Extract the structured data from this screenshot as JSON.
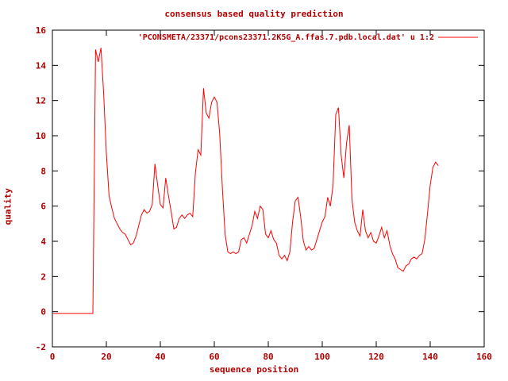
{
  "window": {
    "background": "#ffffff"
  },
  "chart_data": {
    "type": "line",
    "title": "consensus based quality prediction",
    "xlabel": "sequence position",
    "ylabel": "quality",
    "xlim": [
      0,
      160
    ],
    "ylim": [
      -2,
      16
    ],
    "xticks": [
      0,
      20,
      40,
      60,
      80,
      100,
      120,
      140,
      160
    ],
    "yticks": [
      -2,
      0,
      2,
      4,
      6,
      8,
      10,
      12,
      14,
      16
    ],
    "grid": false,
    "legend": "'PCONSMETA/23371/pcons23371.2K5G_A.ffas.7.pdb.local.dat' u 1:2",
    "legend_position": "top-right-inside",
    "line_color": "#ff0000",
    "text_color": "#b00000",
    "border_color": "#000000",
    "series": [
      {
        "name": "'PCONSMETA/23371/pcons23371.2K5G_A.ffas.7.pdb.local.dat' u 1:2",
        "x": [
          0,
          1,
          2,
          3,
          4,
          5,
          6,
          7,
          8,
          9,
          10,
          11,
          12,
          13,
          14,
          15,
          16,
          17,
          18,
          19,
          20,
          21,
          22,
          23,
          24,
          25,
          26,
          27,
          28,
          29,
          30,
          31,
          32,
          33,
          34,
          35,
          36,
          37,
          38,
          39,
          40,
          41,
          42,
          43,
          44,
          45,
          46,
          47,
          48,
          49,
          50,
          51,
          52,
          53,
          54,
          55,
          56,
          57,
          58,
          59,
          60,
          61,
          62,
          63,
          64,
          65,
          66,
          67,
          68,
          69,
          70,
          71,
          72,
          73,
          74,
          75,
          76,
          77,
          78,
          79,
          80,
          81,
          82,
          83,
          84,
          85,
          86,
          87,
          88,
          89,
          90,
          91,
          92,
          93,
          94,
          95,
          96,
          97,
          98,
          99,
          100,
          101,
          102,
          103,
          104,
          105,
          106,
          107,
          108,
          109,
          110,
          111,
          112,
          113,
          114,
          115,
          116,
          117,
          118,
          119,
          120,
          121,
          122,
          123,
          124,
          125,
          126,
          127,
          128,
          129,
          130,
          131,
          132,
          133,
          134,
          135,
          136,
          137,
          138,
          139,
          140,
          141,
          142,
          143
        ],
        "y": [
          -0.1,
          -0.1,
          -0.1,
          -0.1,
          -0.1,
          -0.1,
          -0.1,
          -0.1,
          -0.1,
          -0.1,
          -0.1,
          -0.1,
          -0.1,
          -0.1,
          -0.1,
          -0.1,
          14.9,
          14.2,
          15.0,
          12.4,
          9.0,
          6.6,
          5.9,
          5.3,
          5.0,
          4.7,
          4.5,
          4.4,
          4.1,
          3.8,
          3.9,
          4.3,
          4.9,
          5.5,
          5.8,
          5.6,
          5.7,
          6.1,
          8.4,
          7.2,
          6.1,
          5.9,
          7.6,
          6.6,
          5.7,
          4.7,
          4.8,
          5.3,
          5.5,
          5.3,
          5.5,
          5.6,
          5.4,
          7.9,
          9.2,
          8.9,
          12.7,
          11.3,
          11.0,
          11.9,
          12.2,
          11.9,
          10.1,
          7.0,
          4.4,
          3.4,
          3.3,
          3.4,
          3.3,
          3.4,
          4.1,
          4.2,
          3.9,
          4.4,
          4.9,
          5.7,
          5.3,
          6.0,
          5.8,
          4.4,
          4.2,
          4.6,
          4.1,
          3.9,
          3.2,
          3.0,
          3.2,
          2.9,
          3.4,
          5.1,
          6.3,
          6.5,
          5.4,
          4.0,
          3.5,
          3.7,
          3.5,
          3.6,
          4.1,
          4.6,
          5.1,
          5.4,
          6.5,
          6.0,
          7.2,
          11.2,
          11.6,
          8.9,
          7.6,
          9.6,
          10.6,
          6.4,
          5.1,
          4.6,
          4.3,
          5.8,
          4.6,
          4.2,
          4.5,
          4.0,
          3.9,
          4.3,
          4.8,
          4.2,
          4.6,
          3.8,
          3.3,
          3.0,
          2.5,
          2.4,
          2.3,
          2.6,
          2.7,
          3.0,
          3.1,
          3.0,
          3.2,
          3.3,
          4.1,
          5.6,
          7.2,
          8.2,
          8.5,
          8.3
        ]
      }
    ]
  }
}
